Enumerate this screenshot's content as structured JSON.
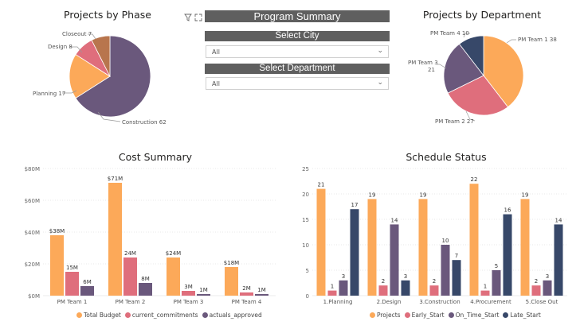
{
  "colors": {
    "orange": "#fca959",
    "pink": "#df6e7c",
    "purple": "#6a587c",
    "navy": "#374869",
    "brown": "#b8754d",
    "banner": "#5f5f5f"
  },
  "header": {
    "title": "Program Summary",
    "filter_icon": "filter-icon",
    "focus_icon": "focus-mode-icon"
  },
  "slicers": {
    "city": {
      "title": "Select City",
      "value": "All"
    },
    "department": {
      "title": "Select Department",
      "value": "All"
    }
  },
  "chart_data": [
    {
      "type": "pie",
      "title": "Projects by Phase",
      "slices": [
        {
          "label": "Construction",
          "value": 62,
          "color": "#6a587c"
        },
        {
          "label": "Planning",
          "value": 17,
          "color": "#fca959"
        },
        {
          "label": "Design",
          "value": 8,
          "color": "#df6e7c"
        },
        {
          "label": "Closeout",
          "value": 7,
          "color": "#b8754d"
        }
      ],
      "slice_labels": [
        "Construction 62",
        "Planning 17",
        "Design 8",
        "Closeout 7"
      ]
    },
    {
      "type": "pie",
      "title": "Projects by Department",
      "slices": [
        {
          "label": "PM Team 1",
          "value": 38,
          "color": "#fca959"
        },
        {
          "label": "PM Team 2",
          "value": 27,
          "color": "#df6e7c"
        },
        {
          "label": "PM Team 3",
          "value": 21,
          "color": "#6a587c"
        },
        {
          "label": "PM Team 4",
          "value": 10,
          "color": "#374869"
        }
      ],
      "slice_labels": [
        "PM Team 1 38",
        "PM Team 2 27",
        "PM Team 3",
        "21",
        "PM Team 4 10"
      ]
    },
    {
      "type": "bar",
      "title": "Cost Summary",
      "categories": [
        "PM Team 1",
        "PM Team 2",
        "PM Team 3",
        "PM Team 4"
      ],
      "series": [
        {
          "name": "Total Budget",
          "values": [
            38,
            71,
            24,
            18
          ],
          "labels": [
            "$38M",
            "$71M",
            "$24M",
            "$18M"
          ],
          "color": "#fca959"
        },
        {
          "name": "current_commitments",
          "values": [
            15,
            24,
            3,
            2
          ],
          "labels": [
            "15M",
            "24M",
            "3M",
            "2M"
          ],
          "color": "#df6e7c"
        },
        {
          "name": "actuals_approved",
          "values": [
            6,
            8,
            1,
            1
          ],
          "labels": [
            "6M",
            "8M",
            "1M",
            "1M"
          ],
          "color": "#6a587c"
        }
      ],
      "ylim": [
        0,
        80
      ],
      "yticks": [
        0,
        20,
        40,
        60,
        80
      ],
      "ytick_labels": [
        "$0M",
        "$20M",
        "$40M",
        "$60M",
        "$80M"
      ]
    },
    {
      "type": "bar",
      "title": "Schedule Status",
      "categories": [
        "1.Planning",
        "2.Design",
        "3.Construction",
        "4.Procurement",
        "5.Close Out"
      ],
      "series": [
        {
          "name": "Projects",
          "values": [
            21,
            19,
            19,
            22,
            19
          ],
          "color": "#fca959"
        },
        {
          "name": "Early_Start",
          "values": [
            1,
            2,
            2,
            1,
            2
          ],
          "color": "#df6e7c"
        },
        {
          "name": "On_Time_Start",
          "values": [
            3,
            14,
            10,
            5,
            3
          ],
          "color": "#6a587c"
        },
        {
          "name": "Late_Start",
          "values": [
            17,
            3,
            7,
            16,
            14
          ],
          "color": "#374869"
        }
      ],
      "ylim": [
        0,
        25
      ],
      "yticks": [
        0,
        5,
        10,
        15,
        20,
        25
      ],
      "ytick_labels": [
        "0",
        "5",
        "10",
        "15",
        "20",
        "25"
      ]
    }
  ]
}
